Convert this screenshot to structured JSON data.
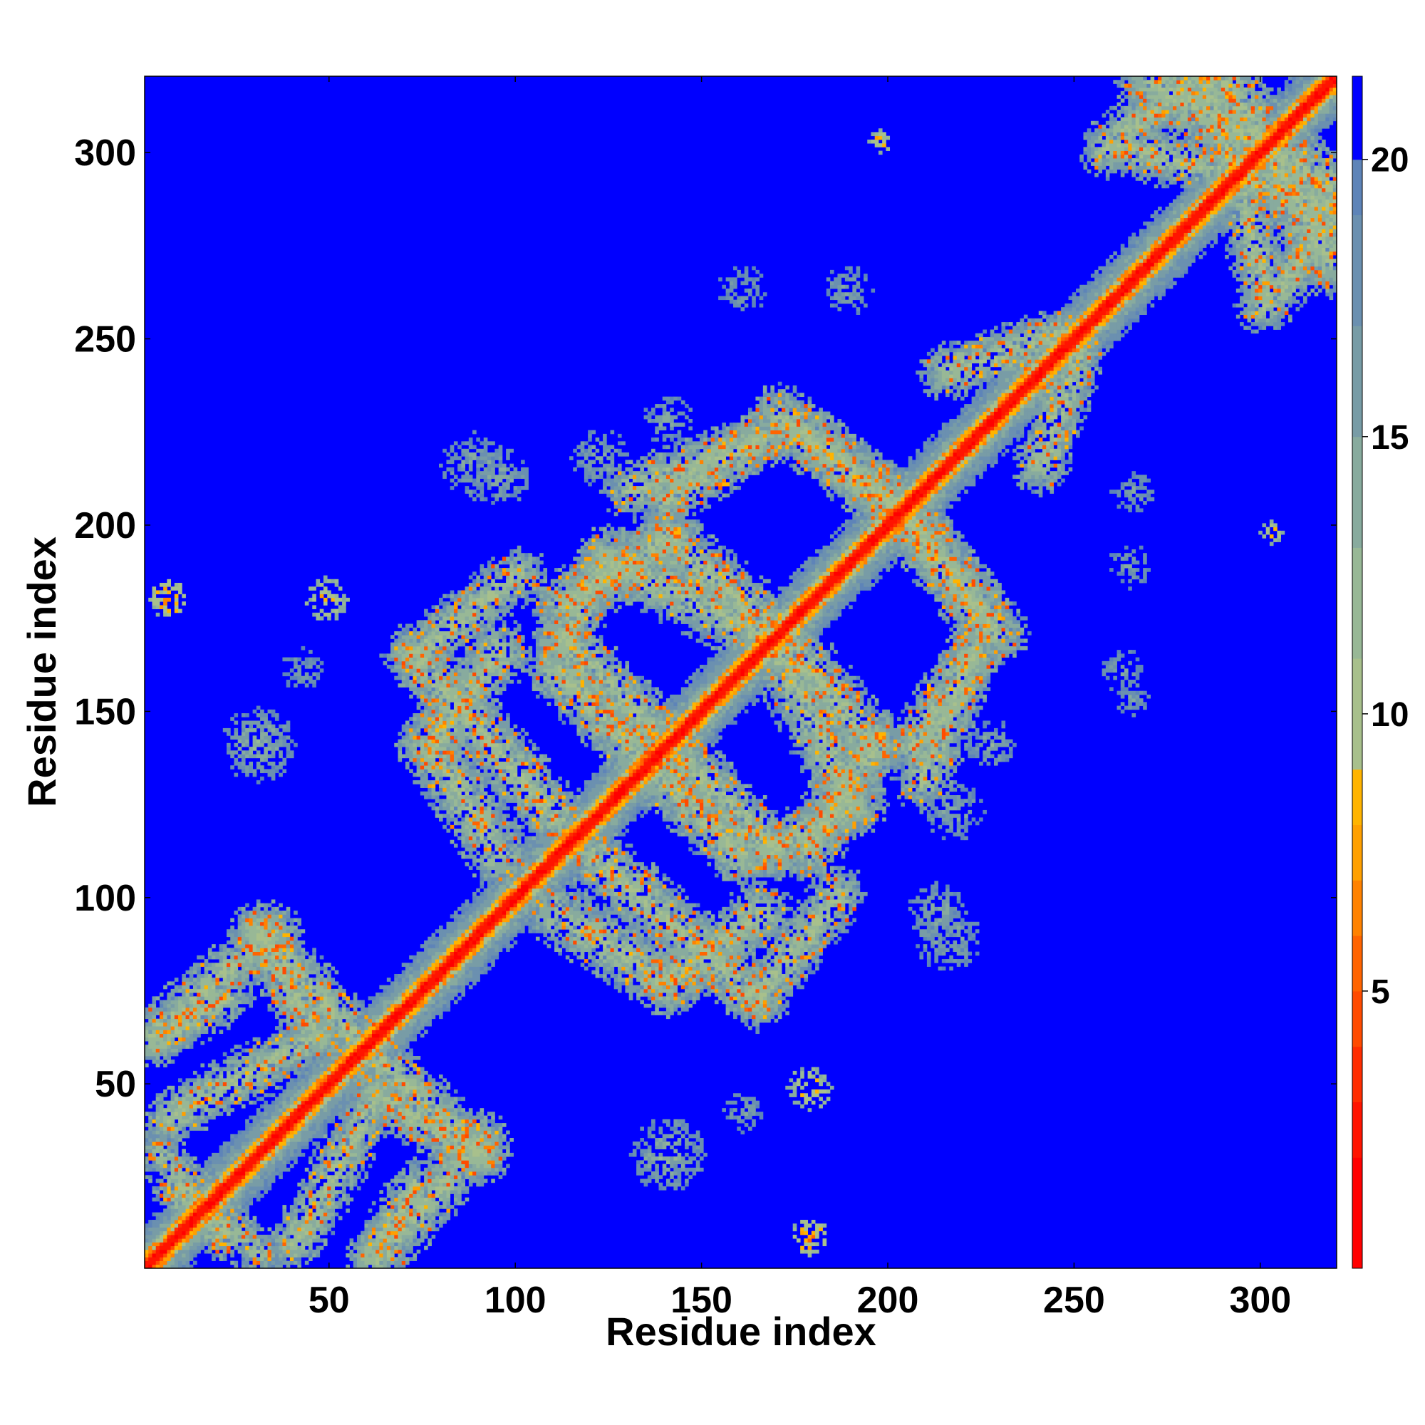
{
  "chart_data": {
    "type": "heatmap",
    "title": "",
    "xlabel": "Residue index",
    "ylabel": "Residue index",
    "n_residues": 320,
    "xlim": [
      1,
      320
    ],
    "ylim": [
      1,
      320
    ],
    "x_ticks": [
      50,
      100,
      150,
      200,
      250,
      300
    ],
    "y_ticks": [
      50,
      100,
      150,
      200,
      250,
      300
    ],
    "colorbar": {
      "ticks": [
        5,
        10,
        15,
        20
      ],
      "range": [
        0,
        21.5
      ],
      "levels": [
        {
          "max": 2,
          "color": "#ff0000"
        },
        {
          "max": 3,
          "color": "#ff1400"
        },
        {
          "max": 4,
          "color": "#ff2d00"
        },
        {
          "max": 5,
          "color": "#ff4b00"
        },
        {
          "max": 6,
          "color": "#ff6400"
        },
        {
          "max": 7,
          "color": "#ff8200"
        },
        {
          "max": 8,
          "color": "#ffa000"
        },
        {
          "max": 9,
          "color": "#ffb400"
        },
        {
          "max": 11,
          "color": "#a8c08c"
        },
        {
          "max": 13,
          "color": "#98b896"
        },
        {
          "max": 15,
          "color": "#88ab9e"
        },
        {
          "max": 17,
          "color": "#789ca6"
        },
        {
          "max": 19,
          "color": "#6b90b0"
        },
        {
          "max": 20,
          "color": "#5e84b8"
        },
        {
          "max": 21.5,
          "color": "#0000ff"
        }
      ]
    },
    "background_color": "#0000ff",
    "diagonal": {
      "band_halfwidth_residues": 10
    },
    "off_diagonal_bands": [
      {
        "from": [
          2,
          62
        ],
        "to": [
          34,
          90
        ],
        "halfwidth": 6
      },
      {
        "from": [
          4,
          30
        ],
        "to": [
          20,
          8
        ],
        "halfwidth": 5
      },
      {
        "from": [
          30,
          90
        ],
        "to": [
          56,
          62
        ],
        "halfwidth": 6
      },
      {
        "from": [
          62,
          46
        ],
        "to": [
          90,
          30
        ],
        "halfwidth": 6
      },
      {
        "from": [
          62,
          46
        ],
        "to": [
          40,
          6
        ],
        "halfwidth": 6
      },
      {
        "from": [
          60,
          2
        ],
        "to": [
          72,
          22
        ],
        "halfwidth": 5
      },
      {
        "from": [
          72,
          164
        ],
        "to": [
          110,
          120
        ],
        "halfwidth": 7
      },
      {
        "from": [
          72,
          164
        ],
        "to": [
          100,
          186
        ],
        "halfwidth": 6
      },
      {
        "from": [
          110,
          160
        ],
        "to": [
          140,
          130
        ],
        "halfwidth": 7
      },
      {
        "from": [
          112,
          178
        ],
        "to": [
          140,
          195
        ],
        "halfwidth": 7
      },
      {
        "from": [
          140,
          195
        ],
        "to": [
          165,
          174
        ],
        "halfwidth": 7
      },
      {
        "from": [
          140,
          140
        ],
        "to": [
          168,
          112
        ],
        "halfwidth": 7
      },
      {
        "from": [
          170,
          164
        ],
        "to": [
          190,
          124
        ],
        "halfwidth": 7
      },
      {
        "from": [
          168,
          112
        ],
        "to": [
          190,
          124
        ],
        "halfwidth": 6
      },
      {
        "from": [
          110,
          95
        ],
        "to": [
          140,
          76
        ],
        "halfwidth": 7
      },
      {
        "from": [
          140,
          76
        ],
        "to": [
          165,
          95
        ],
        "halfwidth": 7
      },
      {
        "from": [
          140,
          206
        ],
        "to": [
          165,
          222
        ],
        "halfwidth": 6
      },
      {
        "from": [
          178,
          222
        ],
        "to": [
          200,
          205
        ],
        "halfwidth": 7
      },
      {
        "from": [
          205,
          200
        ],
        "to": [
          228,
          170
        ],
        "halfwidth": 7
      },
      {
        "from": [
          208,
          130
        ],
        "to": [
          222,
          165
        ],
        "halfwidth": 6
      },
      {
        "from": [
          215,
          240
        ],
        "to": [
          245,
          250
        ],
        "halfwidth": 6
      },
      {
        "from": [
          258,
          300
        ],
        "to": [
          280,
          318
        ],
        "halfwidth": 6
      },
      {
        "from": [
          290,
          318
        ],
        "to": [
          318,
          270
        ],
        "halfwidth": 8
      },
      {
        "from": [
          265,
          300
        ],
        "to": [
          318,
          285
        ],
        "halfwidth": 6
      }
    ],
    "contact_clusters": [
      {
        "center": [
          6,
          179
        ],
        "radius": 4,
        "min_value": 4
      },
      {
        "center": [
          48,
          179
        ],
        "radius": 5,
        "min_value": 6
      },
      {
        "center": [
          178,
          48
        ],
        "radius": 5,
        "min_value": 6
      },
      {
        "center": [
          178,
          8
        ],
        "radius": 4,
        "min_value": 4
      },
      {
        "center": [
          197,
          302
        ],
        "radius": 2,
        "min_value": 5
      },
      {
        "center": [
          302,
          197
        ],
        "radius": 2,
        "min_value": 5
      },
      {
        "center": [
          30,
          140
        ],
        "radius": 9,
        "min_value": 11
      },
      {
        "center": [
          140,
          30
        ],
        "radius": 9,
        "min_value": 11
      },
      {
        "center": [
          88,
          215
        ],
        "radius": 8,
        "min_value": 12
      },
      {
        "center": [
          215,
          88
        ],
        "radius": 8,
        "min_value": 12
      },
      {
        "center": [
          122,
          217
        ],
        "radius": 7,
        "min_value": 12
      },
      {
        "center": [
          217,
          122
        ],
        "radius": 7,
        "min_value": 12
      },
      {
        "center": [
          212,
          95
        ],
        "radius": 7,
        "min_value": 12
      },
      {
        "center": [
          95,
          212
        ],
        "radius": 7,
        "min_value": 12
      },
      {
        "center": [
          160,
          262
        ],
        "radius": 6,
        "min_value": 13
      },
      {
        "center": [
          188,
          262
        ],
        "radius": 6,
        "min_value": 13
      },
      {
        "center": [
          262,
          160
        ],
        "radius": 5,
        "min_value": 13
      },
      {
        "center": [
          264,
          188
        ],
        "radius": 5,
        "min_value": 13
      },
      {
        "center": [
          227,
          140
        ],
        "radius": 6,
        "min_value": 12
      },
      {
        "center": [
          140,
          227
        ],
        "radius": 6,
        "min_value": 12
      },
      {
        "center": [
          265,
          208
        ],
        "radius": 5,
        "min_value": 13
      },
      {
        "center": [
          265,
          152
        ],
        "radius": 4,
        "min_value": 13
      },
      {
        "center": [
          42,
          160
        ],
        "radius": 5,
        "min_value": 13
      },
      {
        "center": [
          160,
          42
        ],
        "radius": 5,
        "min_value": 13
      }
    ]
  }
}
